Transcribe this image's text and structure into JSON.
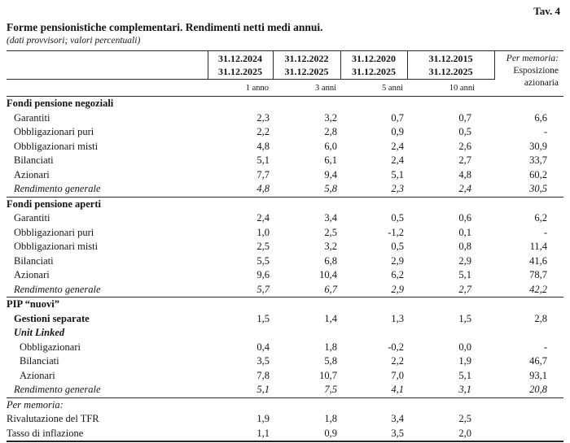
{
  "page": {
    "tav_label": "Tav. 4",
    "title": "Forme pensionistiche complementari. Rendimenti netti medi annui.",
    "subtitle": "(dati provvisori; valori percentuali)"
  },
  "table": {
    "period_columns": [
      {
        "date_from": "31.12.2024",
        "date_to": "31.12.2025",
        "horizon": "1 anno"
      },
      {
        "date_from": "31.12.2022",
        "date_to": "31.12.2025",
        "horizon": "3 anni"
      },
      {
        "date_from": "31.12.2020",
        "date_to": "31.12.2025",
        "horizon": "5 anni"
      },
      {
        "date_from": "31.12.2015",
        "date_to": "31.12.2025",
        "horizon": "10 anni"
      }
    ],
    "memo_column": {
      "line1": "Per memoria:",
      "line2": "Esposizione",
      "line3": "azionaria"
    },
    "sections": [
      {
        "title": "Fondi pensione negoziali",
        "title_style": "bold",
        "rows": [
          {
            "label": "Garantiti",
            "style": "plain",
            "values": [
              "2,3",
              "3,2",
              "0,7",
              "0,7",
              "6,6"
            ]
          },
          {
            "label": "Obbligazionari puri",
            "style": "plain",
            "values": [
              "2,2",
              "2,8",
              "0,9",
              "0,5",
              "-"
            ]
          },
          {
            "label": "Obbligazionari misti",
            "style": "plain",
            "values": [
              "4,8",
              "6,0",
              "2,4",
              "2,6",
              "30,9"
            ]
          },
          {
            "label": "Bilanciati",
            "style": "plain",
            "values": [
              "5,1",
              "6,1",
              "2,4",
              "2,7",
              "33,7"
            ]
          },
          {
            "label": "Azionari",
            "style": "plain",
            "values": [
              "7,7",
              "9,4",
              "5,1",
              "4,8",
              "60,2"
            ]
          },
          {
            "label": "Rendimento generale",
            "style": "italic",
            "values": [
              "4,8",
              "5,8",
              "2,3",
              "2,4",
              "30,5"
            ]
          }
        ]
      },
      {
        "title": "Fondi pensione aperti",
        "title_style": "bold",
        "rows": [
          {
            "label": "Garantiti",
            "style": "plain",
            "values": [
              "2,4",
              "3,4",
              "0,5",
              "0,6",
              "6,2"
            ]
          },
          {
            "label": "Obbligazionari puri",
            "style": "plain",
            "values": [
              "1,0",
              "2,5",
              "-1,2",
              "0,1",
              "-"
            ]
          },
          {
            "label": "Obbligazionari misti",
            "style": "plain",
            "values": [
              "2,5",
              "3,2",
              "0,5",
              "0,8",
              "11,4"
            ]
          },
          {
            "label": "Bilanciati",
            "style": "plain",
            "values": [
              "5,5",
              "6,8",
              "2,9",
              "2,9",
              "41,6"
            ]
          },
          {
            "label": "Azionari",
            "style": "plain",
            "values": [
              "9,6",
              "10,4",
              "6,2",
              "5,1",
              "78,7"
            ]
          },
          {
            "label": "Rendimento generale",
            "style": "italic",
            "values": [
              "5,7",
              "6,7",
              "2,9",
              "2,7",
              "42,2"
            ]
          }
        ]
      },
      {
        "title": "PIP “nuovi”",
        "title_style": "bold",
        "rows": [
          {
            "label": "Gestioni separate",
            "style": "bold",
            "values": [
              "1,5",
              "1,4",
              "1,3",
              "1,5",
              "2,8"
            ]
          },
          {
            "label": "Unit Linked",
            "style": "bolditalic",
            "values": []
          },
          {
            "label": "Obbligazionari",
            "style": "plain2",
            "values": [
              "0,4",
              "1,8",
              "-0,2",
              "0,0",
              "-"
            ]
          },
          {
            "label": "Bilanciati",
            "style": "plain2",
            "values": [
              "3,5",
              "5,8",
              "2,2",
              "1,9",
              "46,7"
            ]
          },
          {
            "label": "Azionari",
            "style": "plain2",
            "values": [
              "7,8",
              "10,7",
              "7,0",
              "5,1",
              "93,1"
            ]
          },
          {
            "label": "Rendimento generale",
            "style": "italic",
            "values": [
              "5,1",
              "7,5",
              "4,1",
              "3,1",
              "20,8"
            ]
          }
        ]
      },
      {
        "title": "Per memoria:",
        "title_style": "italic",
        "rows": [
          {
            "label": "Rivalutazione del TFR",
            "style": "flush",
            "values": [
              "1,9",
              "1,8",
              "3,4",
              "2,5",
              ""
            ]
          },
          {
            "label": "Tasso di inflazione",
            "style": "flush",
            "values": [
              "1,1",
              "0,9",
              "3,5",
              "2,0",
              ""
            ]
          }
        ]
      }
    ]
  }
}
